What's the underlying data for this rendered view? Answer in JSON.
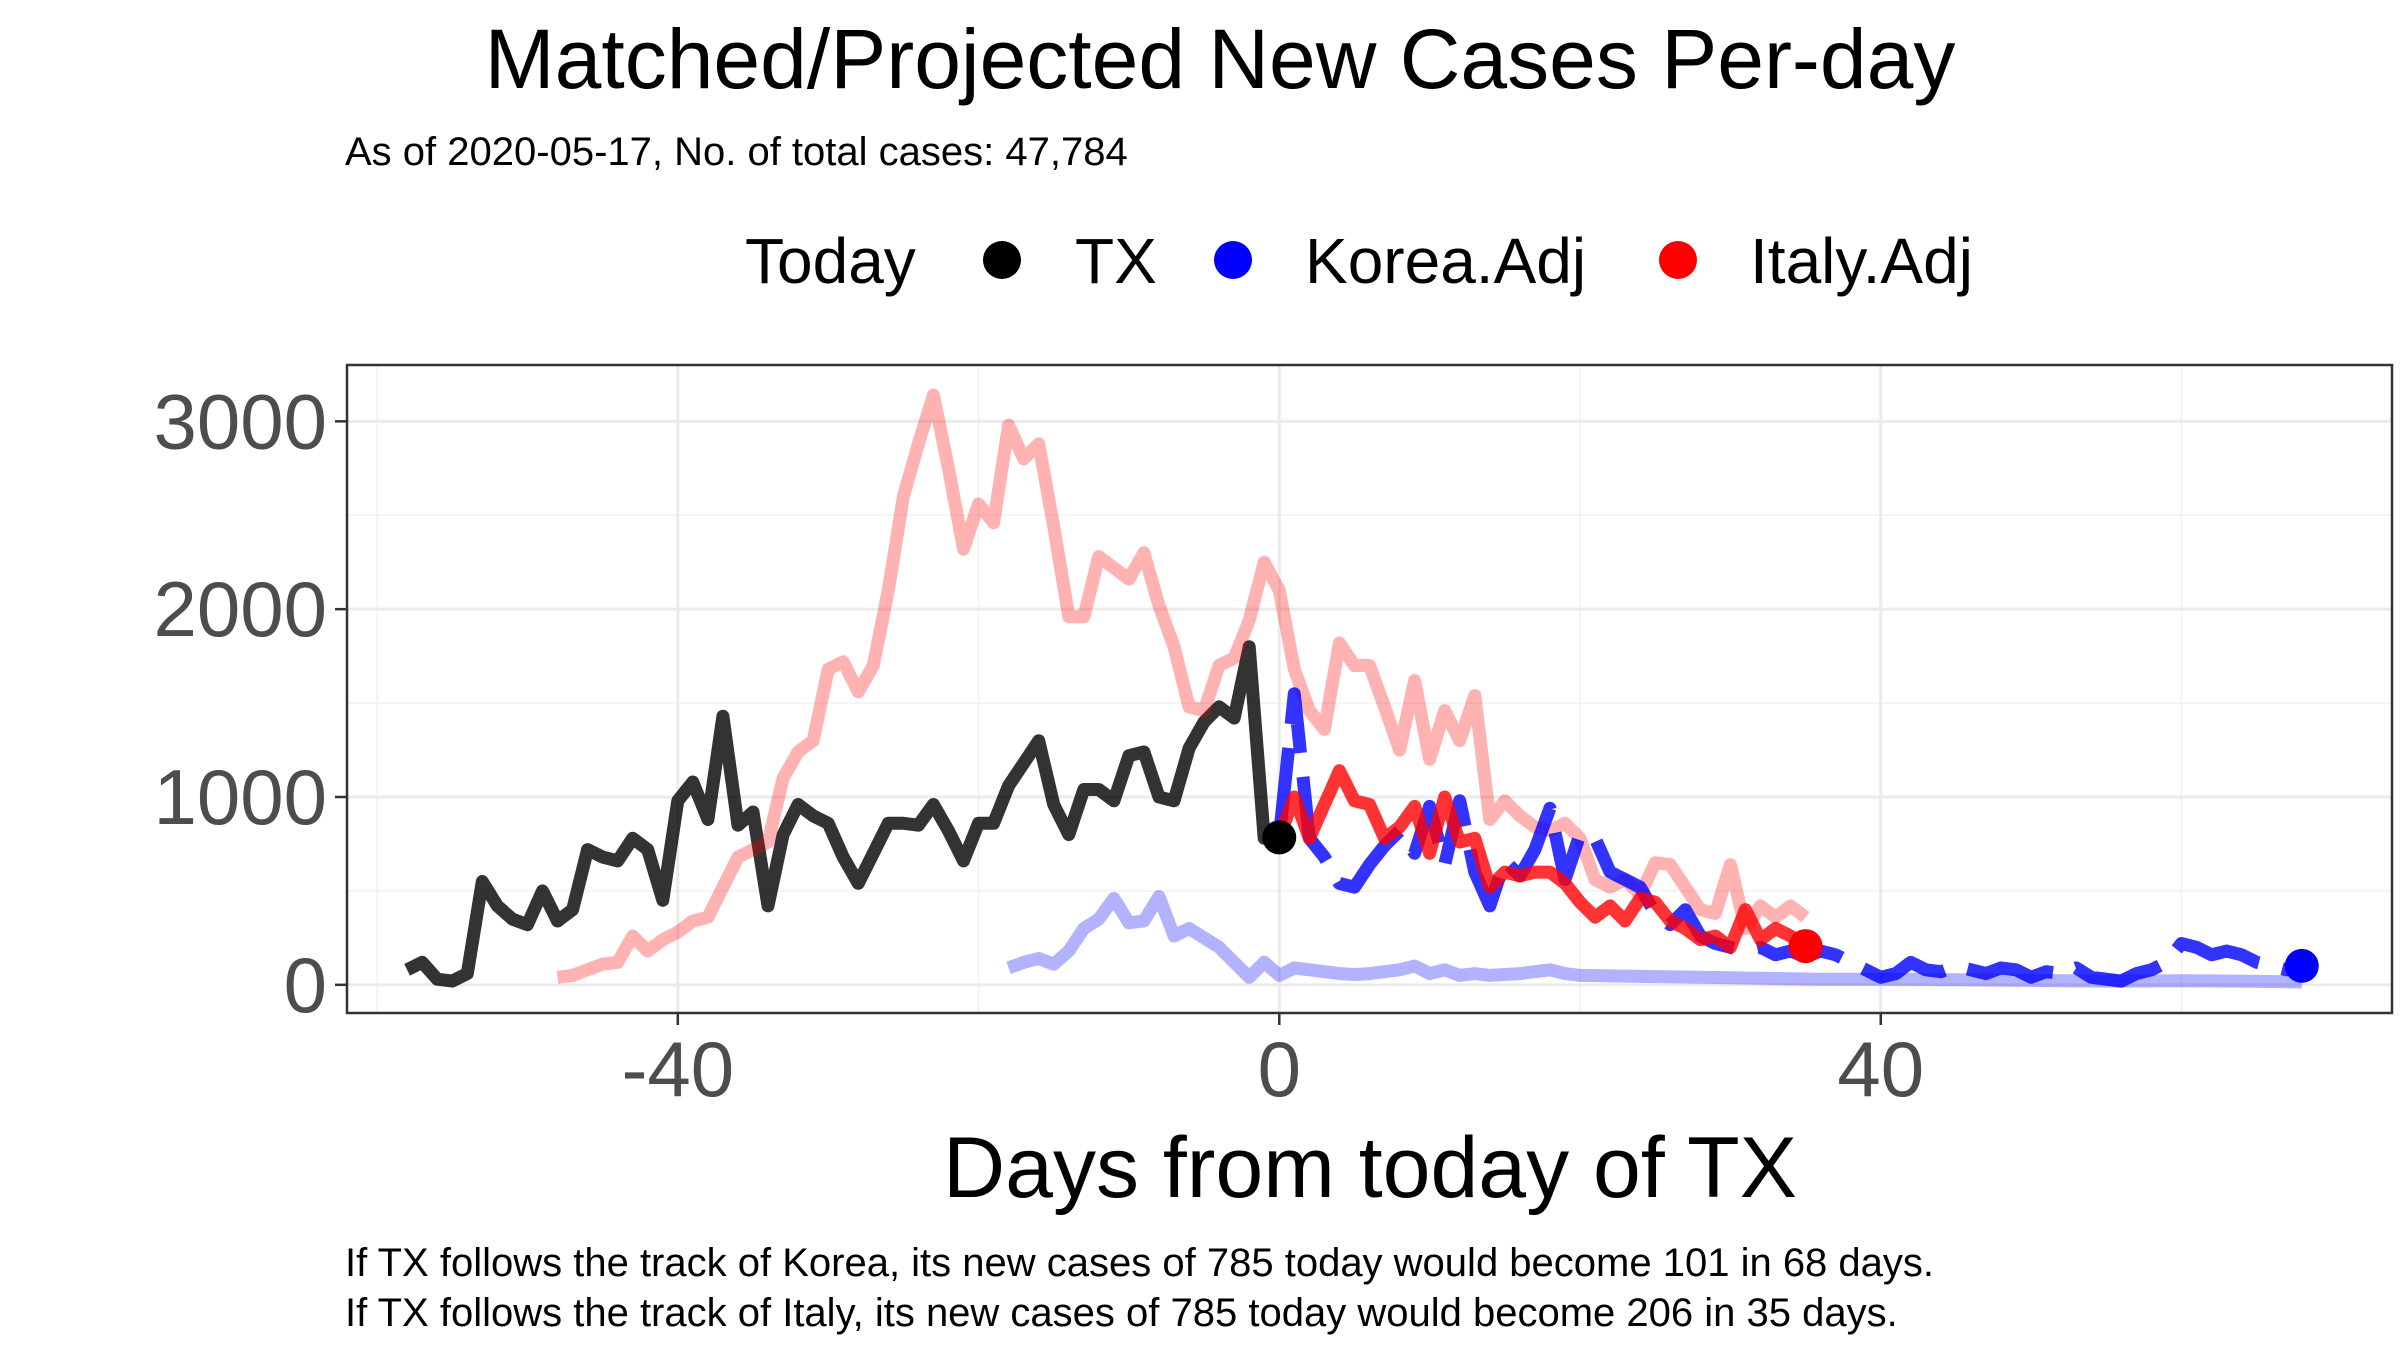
{
  "chart_data": {
    "type": "line",
    "title": "Matched/Projected New Cases Per-day",
    "subtitle": "As of 2020-05-17, No. of total cases: 47,784",
    "xlabel": "Days from today of TX",
    "ylabel": "",
    "xlim": [
      -62,
      74
    ],
    "ylim": [
      -150,
      3300
    ],
    "x_ticks": [
      -40,
      0,
      40
    ],
    "x_tick_labels": [
      "-40",
      "0",
      "40"
    ],
    "y_ticks": [
      0,
      1000,
      2000,
      3000
    ],
    "y_tick_labels": [
      "0",
      "1000",
      "2000",
      "3000"
    ],
    "grid": true,
    "legend": {
      "title": "Today",
      "position": "top",
      "entries": [
        {
          "label": "TX",
          "color": "#000000"
        },
        {
          "label": "Korea.Adj",
          "color": "#0000ff"
        },
        {
          "label": "Italy.Adj",
          "color": "#ff0000"
        }
      ]
    },
    "series": [
      {
        "name": "TX",
        "role": "observed",
        "color": "#000000",
        "opacity": 0.8,
        "x": [
          -58,
          -57,
          -56,
          -55,
          -54,
          -53,
          -52,
          -51,
          -50,
          -49,
          -48,
          -47,
          -46,
          -45,
          -44,
          -43,
          -42,
          -41,
          -40,
          -39,
          -38,
          -37,
          -36,
          -35,
          -34,
          -33,
          -32,
          -31,
          -30,
          -29,
          -28,
          -27,
          -26,
          -25,
          -24,
          -23,
          -22,
          -21,
          -20,
          -19,
          -18,
          -17,
          -16,
          -15,
          -14,
          -13,
          -12,
          -11,
          -10,
          -9,
          -8,
          -7,
          -6,
          -5,
          -4,
          -3,
          -2,
          -1,
          0
        ],
        "y": [
          80,
          120,
          30,
          20,
          60,
          550,
          420,
          350,
          320,
          500,
          340,
          400,
          720,
          680,
          660,
          780,
          720,
          450,
          980,
          1080,
          880,
          1430,
          850,
          920,
          420,
          800,
          960,
          900,
          860,
          680,
          540,
          700,
          860,
          860,
          850,
          960,
          820,
          660,
          860,
          860,
          1060,
          1180,
          1300,
          960,
          800,
          1040,
          1040,
          980,
          1220,
          1240,
          1000,
          980,
          1260,
          1400,
          1480,
          1420,
          1800,
          780,
          785
        ]
      },
      {
        "name": "Italy.Adj",
        "role": "matched",
        "color": "#ff0000",
        "opacity": 0.3,
        "x": [
          -48,
          -47,
          -46,
          -45,
          -44,
          -43,
          -42,
          -41,
          -40,
          -39,
          -38,
          -37,
          -36,
          -35,
          -34,
          -33,
          -32,
          -31,
          -30,
          -29,
          -28,
          -27,
          -26,
          -25,
          -24,
          -23,
          -22,
          -21,
          -20,
          -19,
          -18,
          -17,
          -16,
          -15,
          -14,
          -13,
          -12,
          -11,
          -10,
          -9,
          -8,
          -7,
          -6,
          -5,
          -4,
          -3,
          -2,
          -1,
          0,
          1,
          2,
          3,
          4,
          5,
          6,
          7,
          8,
          9,
          10,
          11,
          12,
          13,
          14,
          15,
          16,
          17,
          18,
          19,
          20,
          21,
          22,
          23,
          24,
          25,
          26,
          27,
          28,
          29,
          30,
          31,
          32,
          33,
          34,
          35
        ],
        "y": [
          40,
          50,
          80,
          110,
          120,
          260,
          180,
          240,
          280,
          340,
          360,
          520,
          680,
          720,
          760,
          1100,
          1240,
          1300,
          1680,
          1720,
          1560,
          1700,
          2100,
          2600,
          2880,
          3140,
          2750,
          2320,
          2560,
          2460,
          2980,
          2800,
          2880,
          2440,
          1960,
          1960,
          2280,
          2220,
          2160,
          2300,
          2020,
          1800,
          1480,
          1460,
          1700,
          1740,
          1940,
          2250,
          2100,
          1680,
          1460,
          1360,
          1820,
          1700,
          1700,
          1480,
          1250,
          1620,
          1200,
          1460,
          1300,
          1540,
          880,
          980,
          900,
          840,
          820,
          860,
          780,
          560,
          520,
          560,
          480,
          650,
          640,
          520,
          400,
          380,
          640,
          300,
          420,
          360,
          420,
          360
        ]
      },
      {
        "name": "Korea.Adj",
        "role": "matched",
        "color": "#0000ff",
        "opacity": 0.3,
        "x": [
          -18,
          -17,
          -16,
          -15,
          -14,
          -13,
          -12,
          -11,
          -10,
          -9,
          -8,
          -7,
          -6,
          -5,
          -4,
          -3,
          -2,
          -1,
          0,
          1,
          2,
          3,
          4,
          5,
          6,
          7,
          8,
          9,
          10,
          11,
          12,
          13,
          14,
          15,
          16,
          17,
          18,
          19,
          20,
          24,
          28,
          32,
          36,
          40,
          44,
          48,
          52,
          56,
          60,
          64,
          68
        ],
        "y": [
          90,
          120,
          140,
          110,
          180,
          300,
          350,
          460,
          330,
          340,
          470,
          260,
          300,
          250,
          200,
          120,
          40,
          120,
          50,
          90,
          80,
          70,
          60,
          55,
          60,
          70,
          80,
          100,
          60,
          80,
          50,
          60,
          50,
          55,
          60,
          70,
          80,
          60,
          50,
          45,
          40,
          35,
          30,
          30,
          28,
          25,
          22,
          20,
          22,
          20,
          15
        ]
      },
      {
        "name": "Korea.Adj",
        "role": "projected",
        "color": "#0000ff",
        "opacity": 0.8,
        "x": [
          0,
          1,
          2,
          3,
          4,
          5,
          6,
          7,
          8,
          9,
          10,
          11,
          12,
          13,
          14,
          15,
          16,
          17,
          18,
          19,
          20,
          21,
          22,
          23,
          24,
          25,
          26,
          27,
          28,
          29,
          30,
          31,
          32,
          33,
          34,
          35,
          36,
          37,
          38,
          39,
          40,
          41,
          42,
          43,
          44,
          45,
          46,
          47,
          48,
          49,
          50,
          51,
          52,
          53,
          54,
          55,
          56,
          57,
          58,
          59,
          60,
          61,
          62,
          63,
          64,
          65,
          66,
          67,
          68
        ],
        "y": [
          785,
          1550,
          780,
          680,
          540,
          520,
          640,
          740,
          820,
          700,
          950,
          640,
          980,
          600,
          420,
          660,
          580,
          720,
          940,
          560,
          800,
          780,
          600,
          560,
          520,
          380,
          320,
          400,
          260,
          220,
          200,
          180,
          200,
          160,
          180,
          150,
          180,
          160,
          120,
          80,
          40,
          60,
          120,
          80,
          70,
          100,
          80,
          60,
          90,
          80,
          40,
          70,
          60,
          90,
          40,
          30,
          20,
          60,
          80,
          120,
          220,
          200,
          160,
          180,
          160,
          120,
          100,
          80,
          101
        ]
      },
      {
        "name": "Italy.Adj",
        "role": "projected",
        "color": "#ff0000",
        "opacity": 0.8,
        "x": [
          0,
          1,
          2,
          3,
          4,
          5,
          6,
          7,
          8,
          9,
          10,
          11,
          12,
          13,
          14,
          15,
          16,
          17,
          18,
          19,
          20,
          21,
          22,
          23,
          24,
          25,
          26,
          27,
          28,
          29,
          30,
          31,
          32,
          33,
          34,
          35
        ],
        "y": [
          785,
          1000,
          780,
          960,
          1140,
          980,
          960,
          780,
          840,
          950,
          700,
          1000,
          760,
          780,
          520,
          600,
          580,
          600,
          600,
          540,
          440,
          360,
          420,
          340,
          460,
          440,
          340,
          300,
          240,
          260,
          200,
          400,
          240,
          300,
          260,
          206
        ]
      }
    ],
    "endpoints": [
      {
        "label": "TX",
        "x": 0,
        "y": 785,
        "color": "#000000"
      },
      {
        "label": "Korea.Adj",
        "x": 68,
        "y": 101,
        "color": "#0000ff"
      },
      {
        "label": "Italy.Adj",
        "x": 35,
        "y": 206,
        "color": "#ff0000"
      }
    ],
    "captions": [
      "If TX follows the track of Korea, its new cases of 785 today would become 101 in 68 days.",
      "If TX follows the track of Italy, its new cases of 785 today would become 206 in 35 days."
    ]
  }
}
